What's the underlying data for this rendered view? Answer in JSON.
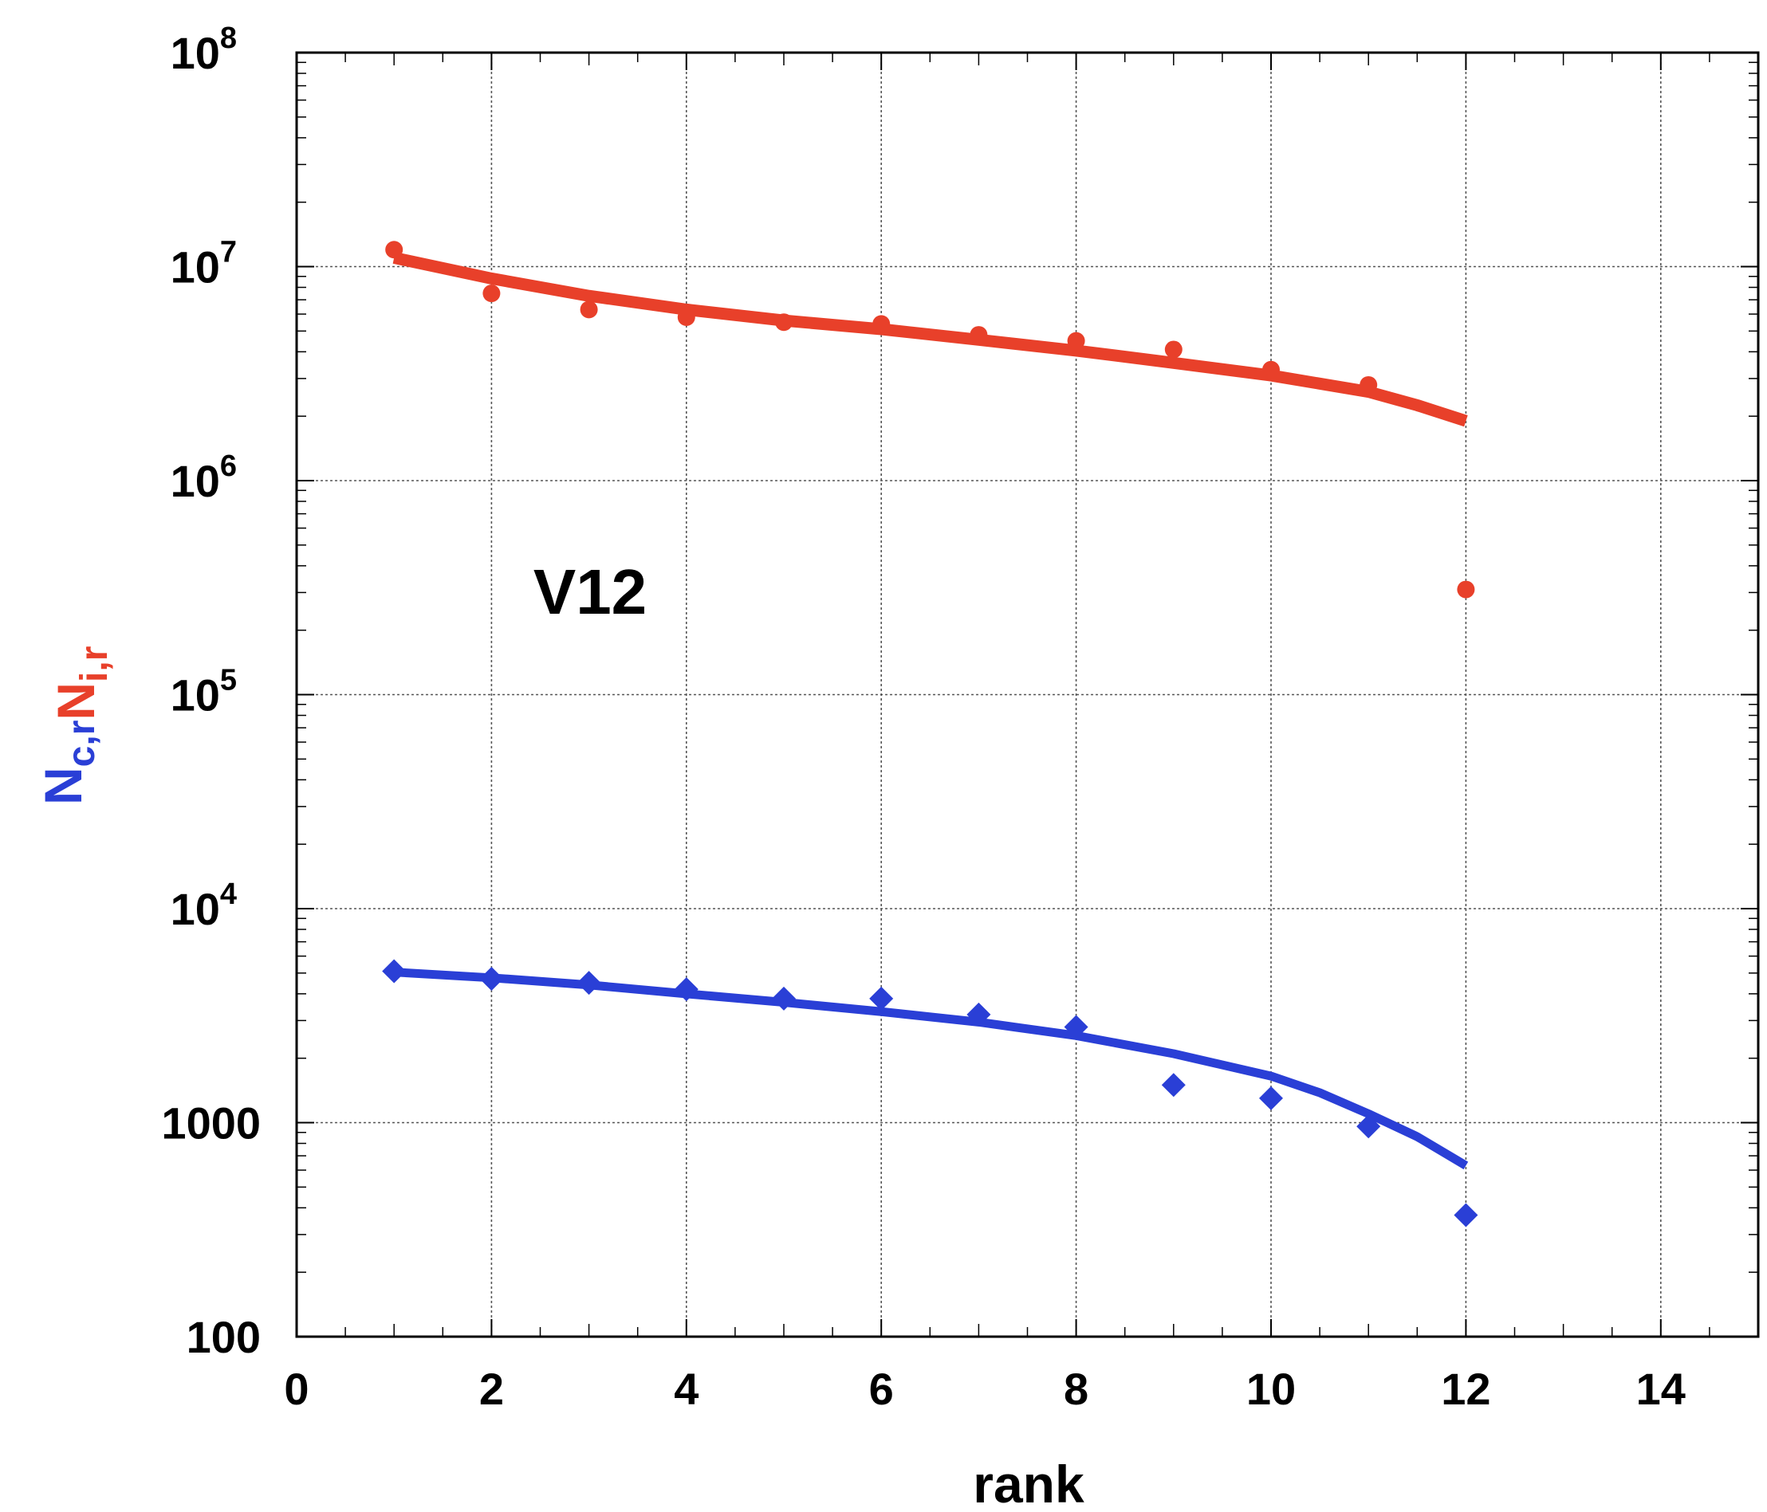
{
  "chart_data": {
    "type": "scatter",
    "annotation": "V12",
    "xlabel": "rank",
    "ylabel_parts": [
      {
        "base": "N",
        "sub": "c,r",
        "color": "#2a3fd6"
      },
      {
        "base": "N",
        "sub": "i,r",
        "color": "#e8402a"
      }
    ],
    "xlim": [
      0,
      15
    ],
    "ylim_log10": [
      2,
      8
    ],
    "x_ticks": [
      {
        "v": 0,
        "label": "0"
      },
      {
        "v": 2,
        "label": "2"
      },
      {
        "v": 4,
        "label": "4"
      },
      {
        "v": 6,
        "label": "6"
      },
      {
        "v": 8,
        "label": "8"
      },
      {
        "v": 10,
        "label": "10"
      },
      {
        "v": 12,
        "label": "12"
      },
      {
        "v": 14,
        "label": "14"
      }
    ],
    "y_ticks": [
      {
        "v": 100,
        "label": "100",
        "base": null,
        "exp": null
      },
      {
        "v": 1000,
        "label": "1000",
        "base": null,
        "exp": null
      },
      {
        "v": 10000,
        "label": "",
        "base": "10",
        "exp": "4"
      },
      {
        "v": 100000,
        "label": "",
        "base": "10",
        "exp": "5"
      },
      {
        "v": 1000000,
        "label": "",
        "base": "10",
        "exp": "6"
      },
      {
        "v": 10000000,
        "label": "",
        "base": "10",
        "exp": "7"
      },
      {
        "v": 100000000,
        "label": "",
        "base": "10",
        "exp": "8"
      }
    ],
    "grid": true,
    "series": [
      {
        "name": "N_i,r",
        "color": "#e8402a",
        "marker": "circle",
        "x": [
          1,
          2,
          3,
          4,
          5,
          6,
          7,
          8,
          9,
          10,
          11,
          12
        ],
        "y": [
          12000000,
          7500000,
          6300000,
          5800000,
          5500000,
          5400000,
          4800000,
          4500000,
          4100000,
          3300000,
          2800000,
          310000
        ],
        "fit": {
          "x": [
            1,
            2,
            3,
            4,
            5,
            6,
            7,
            8,
            9,
            10,
            11,
            11.5,
            12
          ],
          "y": [
            11000000,
            8800000,
            7300000,
            6300000,
            5600000,
            5100000,
            4550000,
            4050000,
            3550000,
            3100000,
            2600000,
            2250000,
            1900000
          ]
        }
      },
      {
        "name": "N_c,r",
        "color": "#2a3fd6",
        "marker": "diamond",
        "x": [
          1,
          2,
          3,
          4,
          5,
          6,
          7,
          8,
          9,
          10,
          11,
          12
        ],
        "y": [
          5100,
          4700,
          4500,
          4200,
          3800,
          3800,
          3200,
          2800,
          1500,
          1300,
          960,
          370
        ],
        "fit": {
          "x": [
            1,
            2,
            3,
            4,
            5,
            6,
            7,
            8,
            9,
            10,
            10.5,
            11,
            11.5,
            12
          ],
          "y": [
            5050,
            4750,
            4400,
            4000,
            3650,
            3300,
            2950,
            2550,
            2100,
            1650,
            1380,
            1100,
            860,
            630
          ]
        }
      }
    ]
  }
}
